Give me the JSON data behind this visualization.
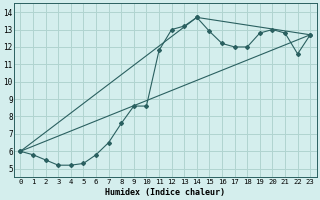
{
  "xlabel": "Humidex (Indice chaleur)",
  "background_color": "#d4eeed",
  "grid_color": "#b0d4d0",
  "line_color": "#2a6060",
  "xlim": [
    -0.5,
    23.5
  ],
  "ylim": [
    4.5,
    14.5
  ],
  "xticks": [
    0,
    1,
    2,
    3,
    4,
    5,
    6,
    7,
    8,
    9,
    10,
    11,
    12,
    13,
    14,
    15,
    16,
    17,
    18,
    19,
    20,
    21,
    22,
    23
  ],
  "yticks": [
    5,
    6,
    7,
    8,
    9,
    10,
    11,
    12,
    13,
    14
  ],
  "series1_x": [
    0,
    1,
    2,
    3,
    4,
    5,
    6,
    7,
    8,
    9,
    10,
    11,
    12,
    13,
    14,
    15,
    16,
    17,
    18,
    19,
    20,
    21,
    22,
    23
  ],
  "series1_y": [
    6.0,
    5.8,
    5.5,
    5.2,
    5.2,
    5.3,
    5.8,
    6.5,
    7.6,
    8.6,
    8.6,
    11.8,
    13.0,
    13.2,
    13.7,
    12.9,
    12.2,
    12.0,
    12.0,
    12.8,
    13.0,
    12.8,
    11.6,
    12.7
  ],
  "series2_x": [
    0,
    23
  ],
  "series2_y": [
    6.0,
    12.7
  ],
  "series3_x": [
    0,
    14,
    23
  ],
  "series3_y": [
    6.0,
    13.7,
    12.7
  ],
  "xlabel_fontsize": 6.0,
  "tick_fontsize": 5.2
}
